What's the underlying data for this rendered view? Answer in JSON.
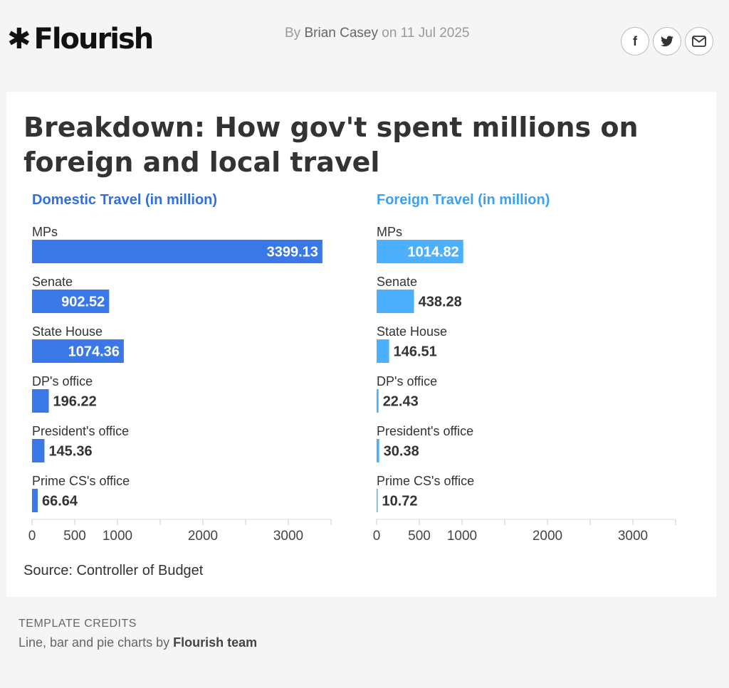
{
  "brand": {
    "logo_text": "Flourish",
    "logo_mark": "✱"
  },
  "byline": {
    "prefix": "By",
    "author": "Brian Casey",
    "date_text": "on 11 Jul 2025"
  },
  "share": {
    "facebook": "f",
    "twitter": "🐦",
    "email": "✉"
  },
  "title": "Breakdown: How gov't spent millions on foreign and local travel",
  "source": "Source: Controller of Budget",
  "credits": {
    "label": "TEMPLATE CREDITS",
    "prefix": "Line, bar and pie charts by",
    "team": "Flourish team"
  },
  "chart_data": [
    {
      "type": "bar",
      "orientation": "horizontal",
      "title": "Domestic Travel (in million)",
      "title_color": "#2f6fdf",
      "bar_color": "#3b78e7",
      "categories": [
        "MPs",
        "Senate",
        "State House",
        "DP's office",
        "President's office",
        "Prime CS's office"
      ],
      "values": [
        3399.13,
        902.52,
        1074.36,
        196.22,
        145.36,
        66.64
      ],
      "xlim": [
        0,
        3500
      ],
      "xticks": [
        0,
        500,
        1000,
        2000,
        3000
      ]
    },
    {
      "type": "bar",
      "orientation": "horizontal",
      "title": "Foreign Travel (in million)",
      "title_color": "#3ca0f0",
      "bar_color": "#4db0ff",
      "categories": [
        "MPs",
        "Senate",
        "State House",
        "DP's office",
        "President's office",
        "Prime CS's office"
      ],
      "values": [
        1014.82,
        438.28,
        146.51,
        22.43,
        30.38,
        10.72
      ],
      "xlim": [
        0,
        3500
      ],
      "xticks": [
        0,
        500,
        1000,
        2000,
        3000
      ]
    }
  ]
}
